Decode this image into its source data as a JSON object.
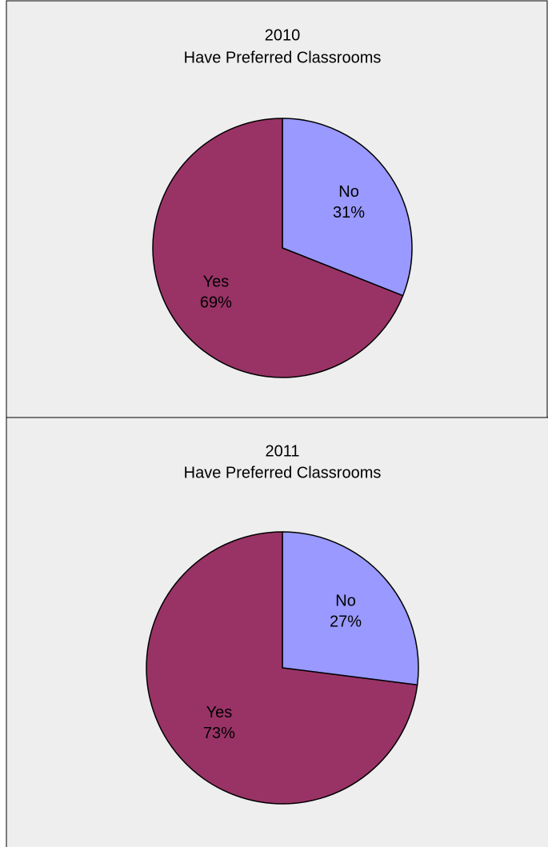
{
  "chart_data": [
    {
      "type": "pie",
      "title": "2010",
      "subtitle": "Have Preferred Classrooms",
      "categories": [
        "No",
        "Yes"
      ],
      "values": [
        31,
        69
      ],
      "value_labels": [
        "31%",
        "69%"
      ],
      "colors": [
        "#9999ff",
        "#993366"
      ]
    },
    {
      "type": "pie",
      "title": "2011",
      "subtitle": "Have Preferred Classrooms",
      "categories": [
        "No",
        "Yes"
      ],
      "values": [
        27,
        73
      ],
      "value_labels": [
        "27%",
        "73%"
      ],
      "colors": [
        "#9999ff",
        "#993366"
      ]
    }
  ]
}
